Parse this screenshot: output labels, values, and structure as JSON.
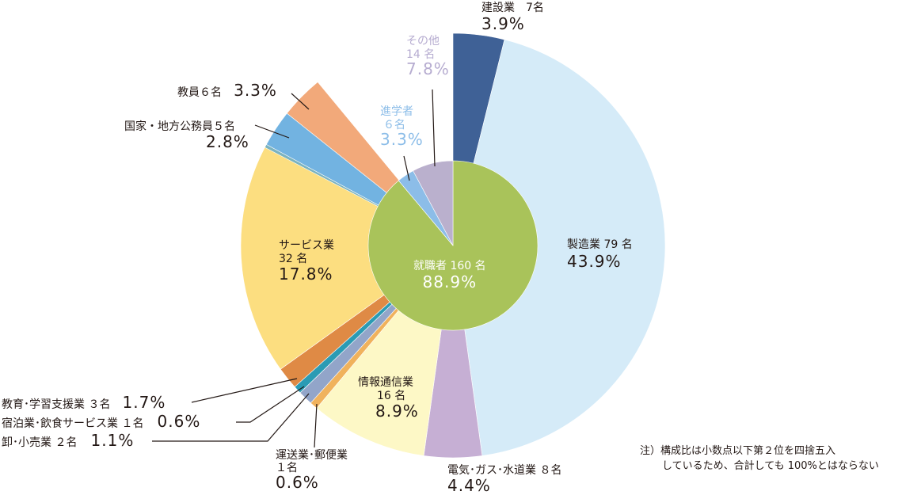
{
  "chart_data": {
    "type": "pie",
    "title": "",
    "outer_ring": [
      {
        "name": "建設業",
        "count": "7名",
        "percent": 3.9,
        "color": "#3f6196"
      },
      {
        "name": "製造業",
        "count": "79名",
        "percent": 43.9,
        "color": "#d5ebf8"
      },
      {
        "name": "電気・ガス・水道業",
        "count": "8名",
        "percent": 4.4,
        "color": "#c6afd4"
      },
      {
        "name": "情報通信業",
        "count": "16名",
        "percent": 8.9,
        "color": "#fdf8c6"
      },
      {
        "name": "運送業・郵便業",
        "count": "1名",
        "percent": 0.6,
        "color": "#f0b25c"
      },
      {
        "name": "卸・小売業",
        "count": "2名",
        "percent": 1.1,
        "color": "#92a5c9"
      },
      {
        "name": "宿泊業・飲食サービス業",
        "count": "1名",
        "percent": 0.6,
        "color": "#2b9bb4"
      },
      {
        "name": "教育・学習支援業",
        "count": "3名",
        "percent": 1.7,
        "color": "#df8a45"
      },
      {
        "name": "サービス業",
        "count": "32名",
        "percent": 17.8,
        "color": "#fcde80"
      },
      {
        "name": "国家・地方公務員",
        "count": "5名",
        "percent": 2.8,
        "color": "#72b3e1"
      },
      {
        "name": "教員",
        "count": "6名",
        "percent": 3.3,
        "color": "#f2a97a"
      }
    ],
    "inner_pie": [
      {
        "name": "就職者",
        "count": "160名",
        "percent": 88.9,
        "color": "#a9c35a"
      },
      {
        "name": "進学者",
        "count": "6名",
        "percent": 3.3,
        "color": "#8cbde8"
      },
      {
        "name": "その他",
        "count": "14名",
        "percent": 7.8,
        "color": "#bab0cd"
      }
    ],
    "labels": {
      "construction": {
        "name": "建設業　7名",
        "pct": "3.9%"
      },
      "manufacturing": {
        "name": "製造業 79 名",
        "pct": "43.9%"
      },
      "utilities": {
        "name": "電気･ガス･水道業 ８名",
        "pct": "4.4%"
      },
      "info": {
        "name": "情報通信業",
        "count": "16 名",
        "pct": "8.9%"
      },
      "transport": {
        "name": "運送業･郵便業",
        "count": "１名",
        "pct": "0.6%"
      },
      "wholesale": {
        "name": "卸･小売業 ２名",
        "pct": "1.1%"
      },
      "hospitality": {
        "name": "宿泊業･飲食サービス業 １名",
        "pct": "0.6%"
      },
      "education": {
        "name": "教育･学習支援業 ３名",
        "pct": "1.7%"
      },
      "service": {
        "name": "サービス業",
        "count": "32 名",
        "pct": "17.8%"
      },
      "public": {
        "name": "国家・地方公務員５名",
        "pct": "2.8%"
      },
      "teacher": {
        "name": "教員６名",
        "pct": "3.3%"
      },
      "further_study": {
        "name": "進学者",
        "count": "６名",
        "pct": "3.3%"
      },
      "other": {
        "name": "その他",
        "count": "14 名",
        "pct": "7.8%"
      },
      "employed": {
        "name": "就職者 160 名",
        "pct": "88.9%"
      }
    },
    "note": [
      "注）構成比は小数点以下第２位を四捨五入",
      "しているため、合計しても 100%とはならない"
    ]
  }
}
